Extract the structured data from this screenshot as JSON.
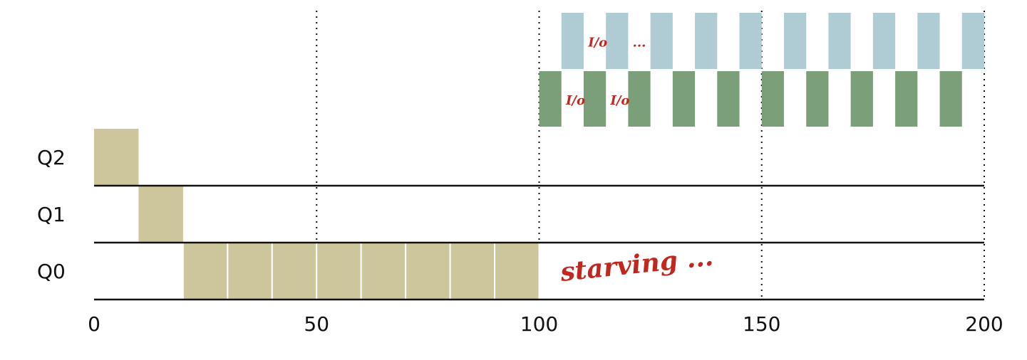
{
  "chart_data": {
    "type": "bar",
    "x_ticks": [
      0,
      50,
      100,
      150,
      200
    ],
    "xlim": [
      0,
      200
    ],
    "queues": [
      "Q2",
      "Q1",
      "Q0"
    ],
    "grid_dotted_x": [
      50,
      100,
      150,
      200
    ],
    "colors": {
      "job_a": "#cdc59b",
      "job_b": "#7a9f79",
      "job_c": "#afccd5",
      "annotation": "#c0281f"
    },
    "series": [
      {
        "color_key": "job_a",
        "segments": [
          {
            "queue": "Q2",
            "start": 0,
            "end": 10
          },
          {
            "queue": "Q1",
            "start": 10,
            "end": 20
          },
          {
            "queue": "Q0",
            "start": 20,
            "end": 30
          },
          {
            "queue": "Q0",
            "start": 30,
            "end": 40
          },
          {
            "queue": "Q0",
            "start": 40,
            "end": 50
          },
          {
            "queue": "Q0",
            "start": 50,
            "end": 60
          },
          {
            "queue": "Q0",
            "start": 60,
            "end": 70
          },
          {
            "queue": "Q0",
            "start": 70,
            "end": 80
          },
          {
            "queue": "Q0",
            "start": 80,
            "end": 90
          },
          {
            "queue": "Q0",
            "start": 90,
            "end": 100
          }
        ]
      },
      {
        "color_key": "job_b",
        "level": 1,
        "segments": [
          {
            "start": 100,
            "end": 105
          },
          {
            "start": 110,
            "end": 115
          },
          {
            "start": 120,
            "end": 125
          },
          {
            "start": 130,
            "end": 135
          },
          {
            "start": 140,
            "end": 145
          },
          {
            "start": 150,
            "end": 155
          },
          {
            "start": 160,
            "end": 165
          },
          {
            "start": 170,
            "end": 175
          },
          {
            "start": 180,
            "end": 185
          },
          {
            "start": 190,
            "end": 195
          }
        ]
      },
      {
        "color_key": "job_c",
        "level": 2,
        "segments": [
          {
            "start": 105,
            "end": 110
          },
          {
            "start": 115,
            "end": 120
          },
          {
            "start": 125,
            "end": 130
          },
          {
            "start": 135,
            "end": 140
          },
          {
            "start": 145,
            "end": 150
          },
          {
            "start": 155,
            "end": 160
          },
          {
            "start": 165,
            "end": 170
          },
          {
            "start": 175,
            "end": 180
          },
          {
            "start": 185,
            "end": 190
          },
          {
            "start": 195,
            "end": 200
          }
        ]
      }
    ],
    "annotations": [
      {
        "text": "starving",
        "suffix": "...",
        "x": 105,
        "queue": "Q0"
      },
      {
        "text": "I/o",
        "x": 106,
        "level": 1
      },
      {
        "text": "I/o",
        "x": 116,
        "level": 1
      },
      {
        "text": "I/o",
        "x": 111,
        "level": 2
      },
      {
        "text": "...",
        "x": 121,
        "level": 2
      }
    ]
  }
}
